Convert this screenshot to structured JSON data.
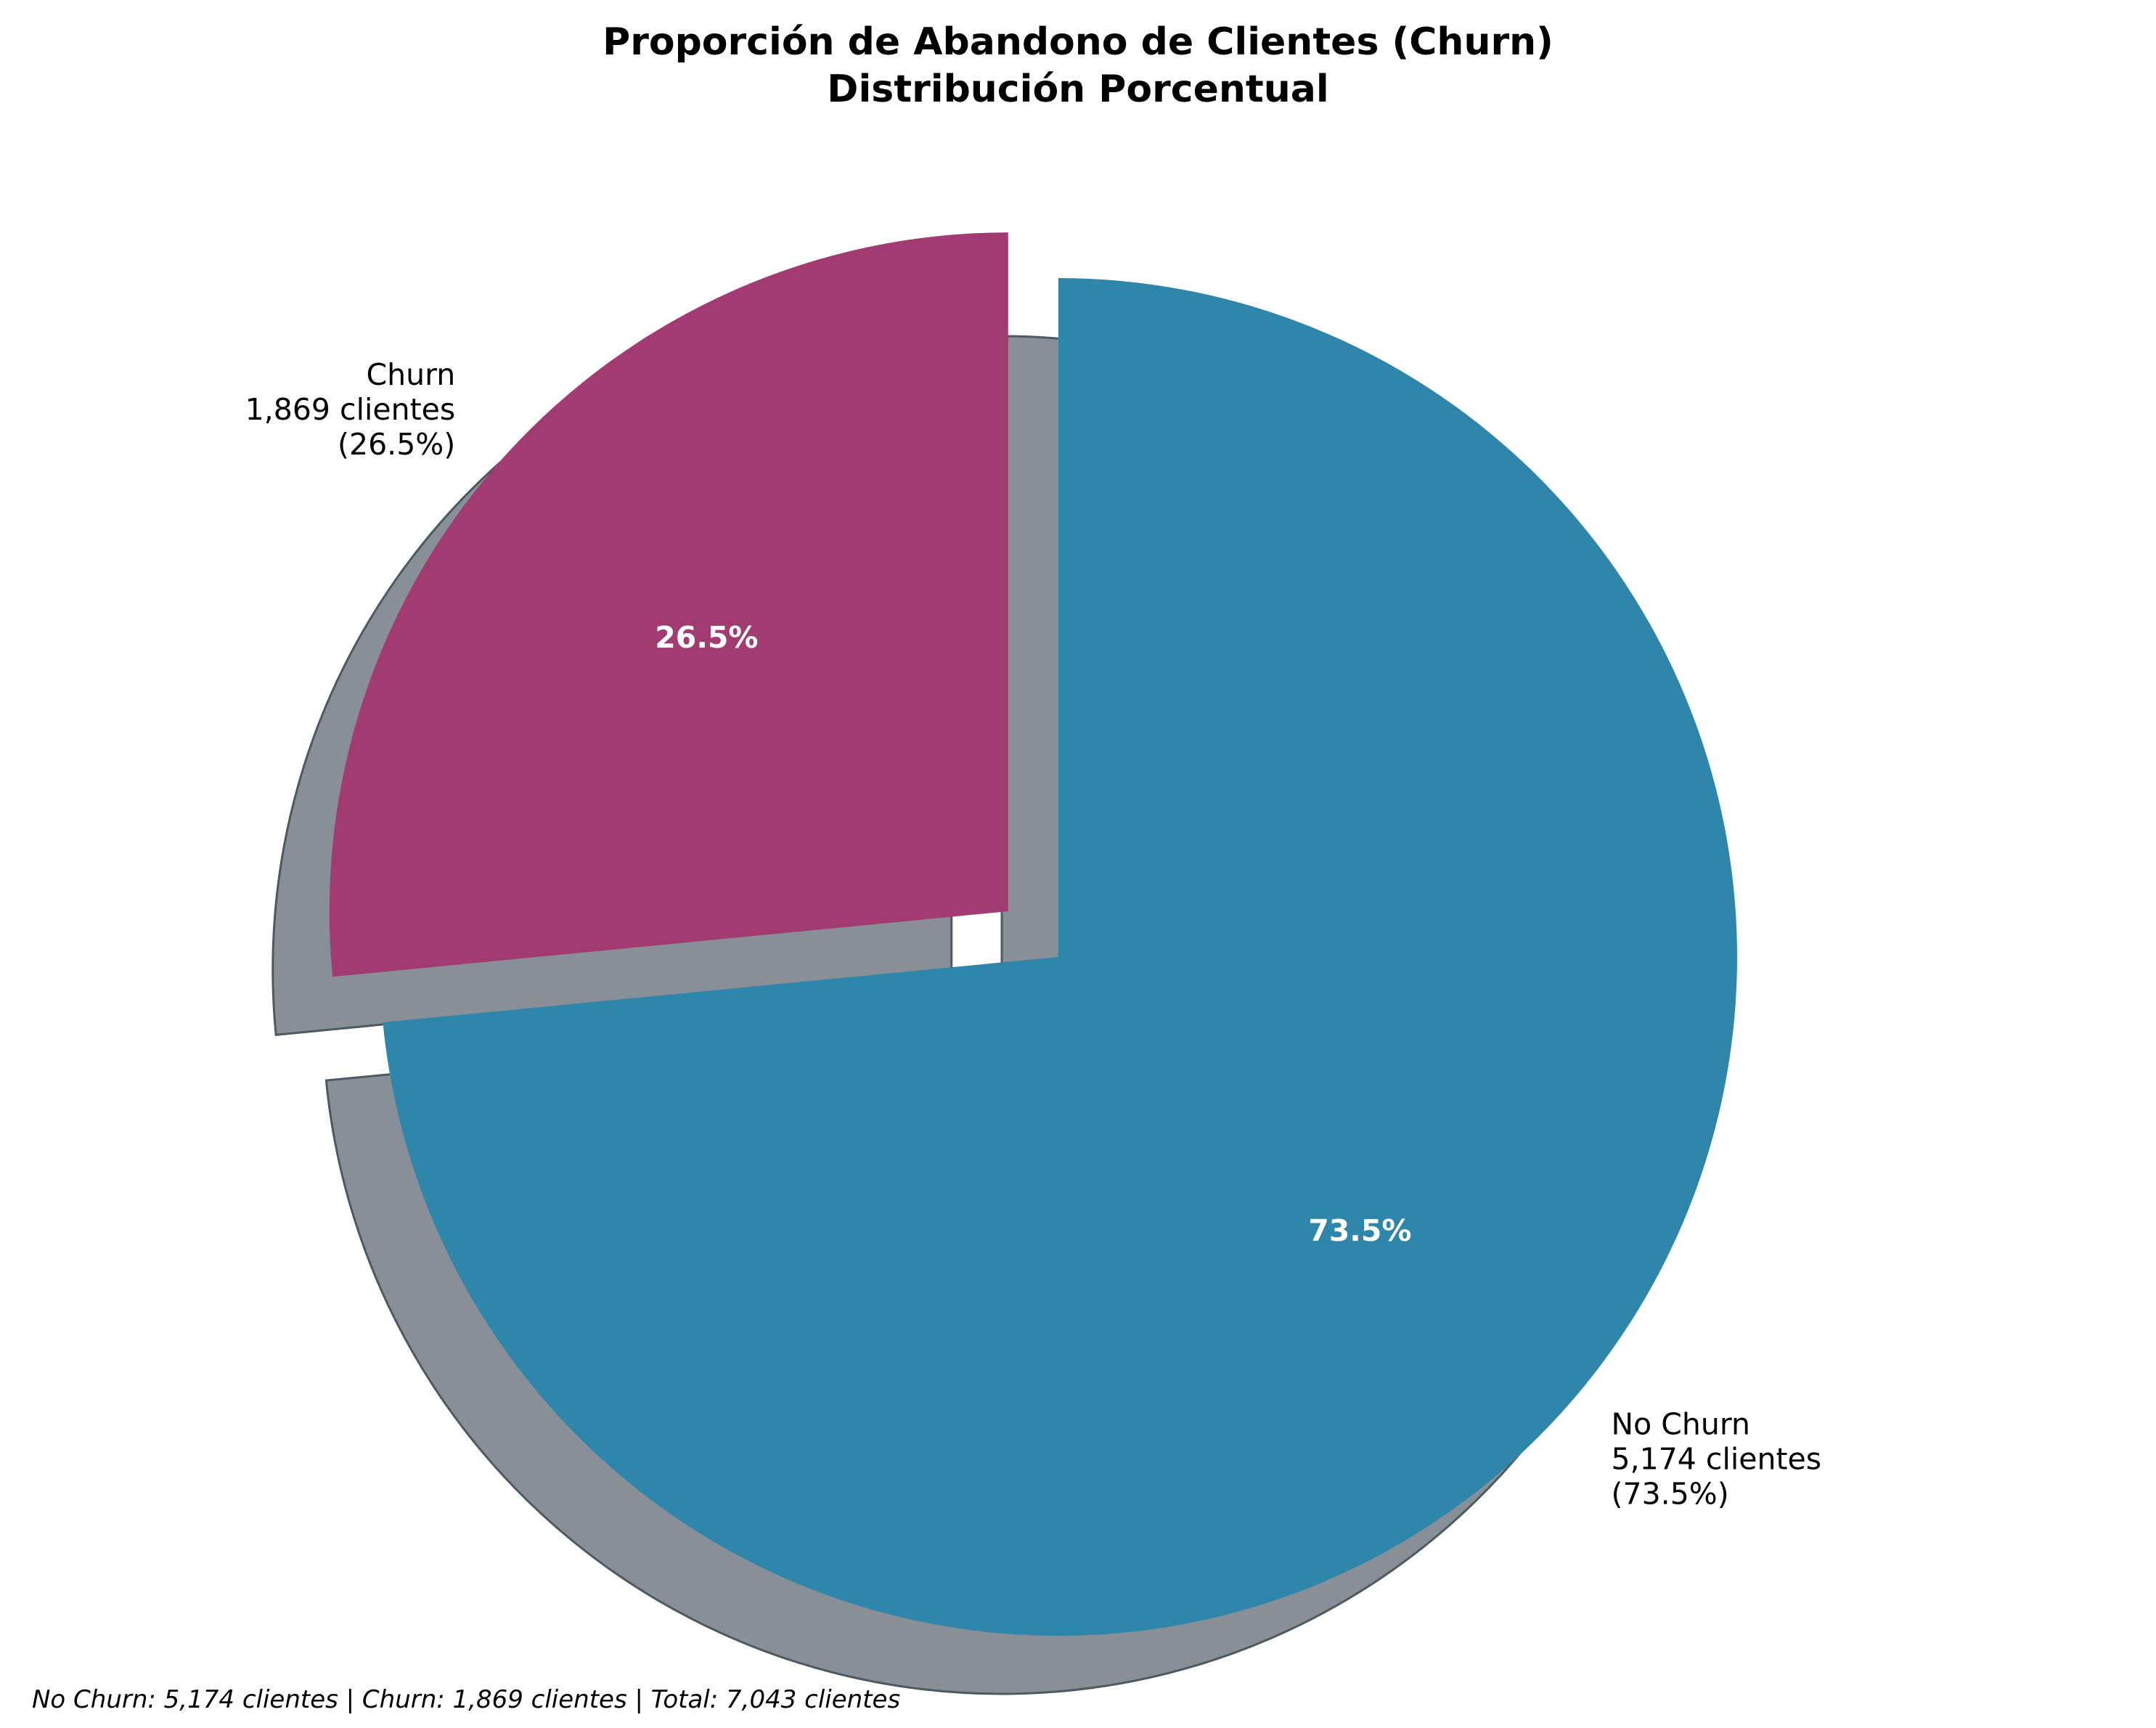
{
  "chart_data": {
    "type": "pie",
    "title": "Proporción de Abandono de Clientes (Churn)",
    "subtitle": "Distribución Porcentual",
    "slices": [
      {
        "name": "No Churn",
        "value": 5174,
        "percent": 73.5,
        "color": "#2e86ab",
        "label_lines": [
          "No Churn",
          "5,174 clientes",
          "(73.5%)"
        ],
        "pct_label": "73.5%",
        "exploded": false
      },
      {
        "name": "Churn",
        "value": 1869,
        "percent": 26.5,
        "color": "#a23b72",
        "label_lines": [
          "Churn",
          "1,869 clientes",
          "(26.5%)"
        ],
        "pct_label": "26.5%",
        "exploded": true
      }
    ],
    "start_angle_deg": 90,
    "direction": "clockwise",
    "shadow": true,
    "shadow_color": "#888f96",
    "footer": "No Churn: 5,174 clientes | Churn: 1,869 clientes | Total: 7,043 clientes"
  }
}
